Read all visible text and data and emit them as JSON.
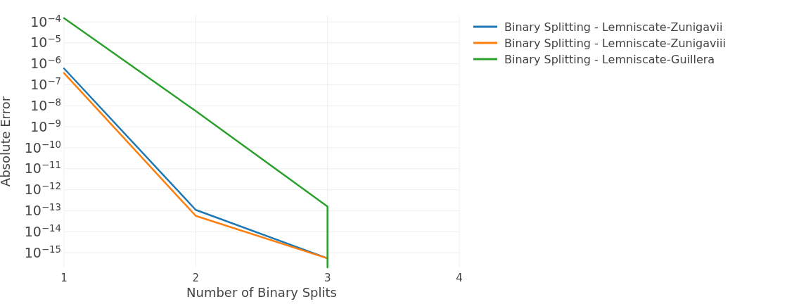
{
  "chart_data": {
    "type": "line",
    "xlabel": "Number of Binary Splits",
    "ylabel": "Absolute Error",
    "log": "y",
    "grid": true,
    "legend": "top right",
    "line_style": "solid",
    "marker": "none",
    "xlim": [
      1,
      4
    ],
    "xticks": [
      1,
      2,
      3,
      4
    ],
    "ylim": [
      2e-16,
      0.0002
    ],
    "yticks": [
      {
        "value": 0.0001,
        "label": "10$^{−4}$"
      },
      {
        "value": 1e-05,
        "label": "10$^{−5}$"
      },
      {
        "value": 1e-06,
        "label": "10$^{−6}$"
      },
      {
        "value": 1e-07,
        "label": "10$^{−7}$"
      },
      {
        "value": 1e-08,
        "label": "10$^{−8}$"
      },
      {
        "value": 1e-09,
        "label": "10$^{−9}$"
      },
      {
        "value": 1e-10,
        "label": "10$^{−10}$"
      },
      {
        "value": 1e-11,
        "label": "10$^{−11}$"
      },
      {
        "value": 1e-12,
        "label": "10$^{−12}$"
      },
      {
        "value": 1e-13,
        "label": "10$^{−13}$"
      },
      {
        "value": 1e-14,
        "label": "10$^{−14}$"
      },
      {
        "value": 1e-15,
        "label": "10$^{−15}$"
      }
    ],
    "series": [
      {
        "name": "Binary Splitting - Lemniscate-Zunigavii",
        "color": "#1f77b4",
        "x": [
          1,
          2,
          3
        ],
        "values": [
          6e-07,
          1.1e-13,
          5.4e-16
        ]
      },
      {
        "name": "Binary Splitting - Lemniscate-Zunigaviii",
        "color": "#ff7f0e",
        "x": [
          1,
          2,
          3
        ],
        "values": [
          3.6e-07,
          5.7e-14,
          5.4e-16
        ]
      },
      {
        "name": "Binary Splitting - Lemniscate-Guillera",
        "color": "#2ca02c",
        "x": [
          1,
          2,
          3,
          3
        ],
        "values": [
          0.00015,
          5.6e-09,
          1.6e-13,
          2e-16
        ]
      }
    ]
  }
}
